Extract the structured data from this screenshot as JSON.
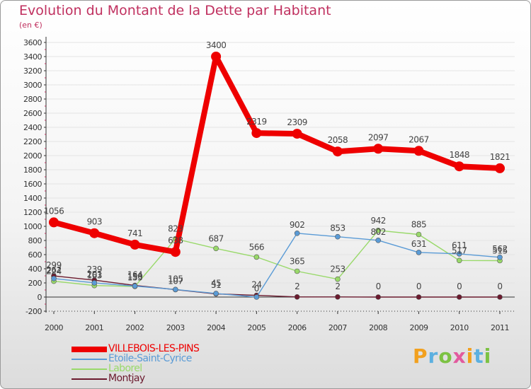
{
  "chart_data": {
    "type": "line",
    "title": "Evolution du Montant de la Dette par Habitant",
    "subtitle": "(en €)",
    "xlabel": "",
    "ylabel": "",
    "ylim": [
      -200,
      3600
    ],
    "yticks": [
      -200,
      0,
      200,
      400,
      600,
      800,
      1000,
      1200,
      1400,
      1600,
      1800,
      2000,
      2200,
      2400,
      2600,
      2800,
      3000,
      3200,
      3400,
      3600
    ],
    "categories": [
      "2000",
      "2001",
      "2002",
      "2003",
      "2004",
      "2005",
      "2006",
      "2007",
      "2008",
      "2009",
      "2010",
      "2011"
    ],
    "series": [
      {
        "name": "Montjay",
        "color": "#6b1a2e",
        "values": [
          299,
          239,
          164,
          105,
          45,
          24,
          2,
          2,
          0,
          0,
          0,
          0
        ]
      },
      {
        "name": "Laborel",
        "color": "#99d96a",
        "values": [
          224,
          163,
          150,
          823,
          687,
          566,
          365,
          253,
          942,
          885,
          517,
          515
        ]
      },
      {
        "name": "Etoile-Saint-Cyrice",
        "color": "#5a9bd6",
        "values": [
          262,
          201,
          155,
          107,
          51,
          0,
          902,
          853,
          802,
          631,
          611,
          562
        ]
      },
      {
        "name": "VILLEBOIS-LES-PINS",
        "color": "#ee0000",
        "values": [
          1056,
          903,
          741,
          638,
          3400,
          2319,
          2309,
          2058,
          2097,
          2067,
          1848,
          1821
        ]
      }
    ],
    "data_labels": {
      "Montjay": [
        "299",
        "239",
        "164",
        "105",
        "45",
        "24",
        "2",
        "2",
        "0",
        "0",
        "0",
        "0"
      ],
      "Laborel": [
        "224",
        "163",
        "150",
        "823",
        "",
        "566",
        "365",
        "253",
        "942",
        "885",
        "517",
        "515"
      ],
      "Etoile-Saint-Cyrice": [
        "262",
        "201",
        "155",
        "107",
        "51",
        "0",
        "902",
        "853",
        "802",
        "631",
        "611",
        "562"
      ],
      "VILLEBOIS-LES-PINS": [
        "1056",
        "903",
        "741",
        "638",
        "3400",
        "2319",
        "2309",
        "2058",
        "2097",
        "2067",
        "1848",
        "1821"
      ]
    },
    "extra_labels": [
      {
        "series": "Laborel",
        "index": 4,
        "text": "687"
      }
    ],
    "legend": [
      {
        "name": "VILLEBOIS-LES-PINS",
        "color": "#ee0000"
      },
      {
        "name": "Etoile-Saint-Cyrice",
        "color": "#5a9bd6"
      },
      {
        "name": "Laborel",
        "color": "#99d96a"
      },
      {
        "name": "Montjay",
        "color": "#6b1a2e"
      }
    ],
    "legend_position": "bottom-left"
  },
  "logo": {
    "letters": [
      "P",
      "r",
      "o",
      "x",
      "i",
      "t",
      "i"
    ],
    "colors": [
      "#f2a01e",
      "#5cb0e0",
      "#7cc243",
      "#e25a9e",
      "#f2a01e",
      "#5cb0e0",
      "#7cc243"
    ]
  },
  "colors": {
    "title": "#c0305f",
    "axis": "#333333"
  }
}
